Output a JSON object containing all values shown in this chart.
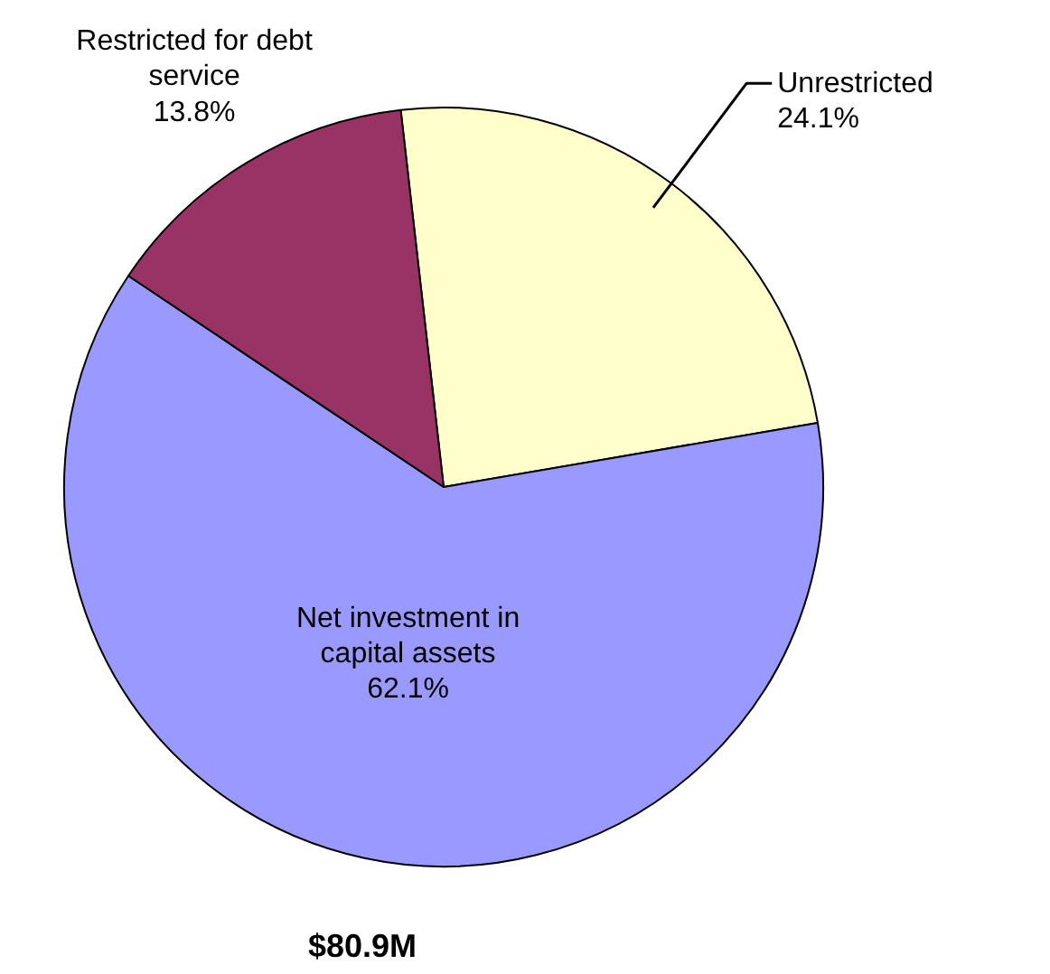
{
  "chart_data": {
    "type": "pie",
    "categories": [
      "Unrestricted",
      "Net investment in capital assets",
      "Restricted for debt service"
    ],
    "values": [
      24.1,
      62.1,
      13.8
    ],
    "value_labels": [
      "24.1%",
      "62.1%",
      "13.8%"
    ],
    "colors": [
      "#ffffcc",
      "#9999ff",
      "#993366"
    ],
    "annotations": [
      "$80.9M"
    ]
  }
}
